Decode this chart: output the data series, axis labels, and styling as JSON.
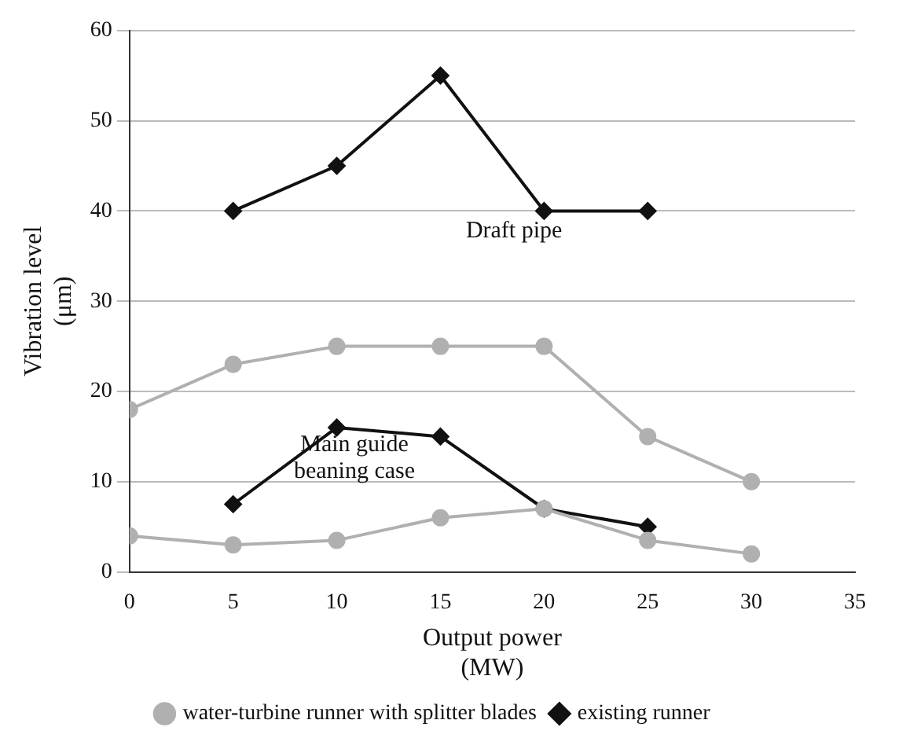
{
  "chart_data": {
    "type": "line",
    "xlabel": "Output power\n(MW)",
    "ylabel": "Vibration level\n(μm)",
    "xlim": [
      0,
      35
    ],
    "xticks": [
      0,
      5,
      10,
      15,
      20,
      25,
      30,
      35
    ],
    "ylim": [
      0,
      60
    ],
    "yticks": [
      0,
      10,
      20,
      30,
      40,
      50,
      60
    ],
    "grid": "y",
    "legend": "bottom",
    "series": [
      {
        "name": "water-turbine runner with splitter blades",
        "color": "#b0b0b0",
        "marker": "circle",
        "x": [
          0,
          5,
          10,
          15,
          20,
          25,
          30
        ],
        "values": [
          18,
          23,
          25,
          25,
          25,
          15,
          10
        ]
      },
      {
        "color": "#b0b0b0",
        "marker": "circle",
        "x": [
          0,
          5,
          10,
          15,
          20,
          25,
          30
        ],
        "values": [
          4,
          3,
          3.5,
          6,
          7,
          3.5,
          2
        ]
      },
      {
        "name": "existing runner",
        "color": "#111111",
        "marker": "diamond",
        "x": [
          5,
          10,
          15,
          20,
          25
        ],
        "values": [
          40,
          45,
          55,
          40,
          40
        ]
      },
      {
        "color": "#111111",
        "marker": "diamond",
        "x": [
          5,
          10,
          15,
          20,
          25
        ],
        "values": [
          7.5,
          16,
          15,
          7,
          5
        ]
      }
    ],
    "annotations": [
      "Draft pipe",
      "Main guide\nbeaning case"
    ]
  }
}
